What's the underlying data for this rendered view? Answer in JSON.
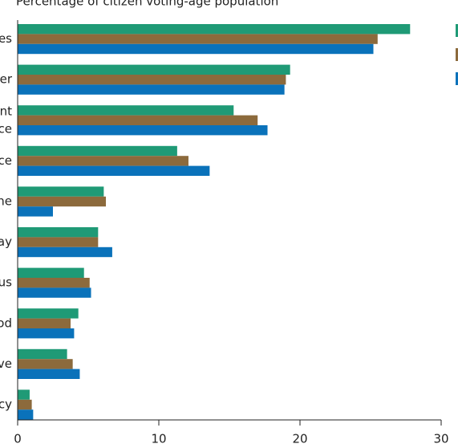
{
  "chart_data": {
    "type": "bar",
    "orientation": "horizontal",
    "title": "Percentage of citizen voting-age population",
    "categories": [
      [
        "es"
      ],
      [
        "er"
      ],
      [
        "nt",
        "ce"
      ],
      [
        "ce"
      ],
      [
        "ne"
      ],
      [
        "ay"
      ],
      [
        "us"
      ],
      [
        "od"
      ],
      [
        "ve"
      ],
      [
        "cy"
      ]
    ],
    "series": [
      {
        "color": "#1f9a76",
        "values": [
          27.8,
          19.3,
          15.3,
          11.3,
          6.1,
          5.7,
          4.7,
          4.3,
          3.5,
          0.85
        ]
      },
      {
        "color": "#8c6a3c",
        "values": [
          25.5,
          19.0,
          17.0,
          12.1,
          6.25,
          5.7,
          5.1,
          3.75,
          3.9,
          1.0
        ]
      },
      {
        "color": "#0a72ba",
        "values": [
          25.2,
          18.9,
          17.7,
          13.6,
          2.5,
          6.7,
          5.2,
          4.0,
          4.4,
          1.1
        ]
      }
    ],
    "xlim": [
      0,
      30
    ],
    "xticks": [
      0,
      10,
      20,
      30
    ]
  }
}
